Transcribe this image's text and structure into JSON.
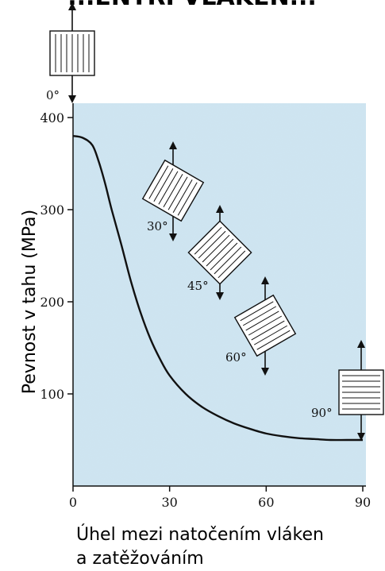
{
  "header": {
    "cut_title": "...ENTRÍ VLÁKEN..."
  },
  "chart_data": {
    "type": "line",
    "title": "",
    "xlabel": "Úhel mezi natočením vláken",
    "xlabel_line2": "a zatěžováním",
    "ylabel": "Pevnost v tahu (MPa)",
    "xlim": [
      0,
      90
    ],
    "ylim": [
      0,
      400
    ],
    "x_ticks": [
      0,
      30,
      60,
      90
    ],
    "y_ticks": [
      100,
      200,
      300,
      400
    ],
    "grid": false,
    "background_color": "#cfe6f2",
    "line_color": "#111111",
    "series": [
      {
        "x": [
          0,
          3,
          6,
          8,
          10,
          12,
          15,
          18,
          21,
          24,
          27,
          30,
          35,
          40,
          45,
          50,
          55,
          60,
          65,
          70,
          75,
          80,
          85,
          90
        ],
        "y": [
          380,
          378,
          370,
          352,
          328,
          300,
          262,
          222,
          188,
          160,
          138,
          120,
          100,
          86,
          76,
          68,
          62,
          57,
          54,
          52,
          51,
          50,
          50,
          50
        ]
      }
    ],
    "annotations": [
      {
        "label": "0°",
        "angle": 0,
        "x": 0,
        "y": 400,
        "note": "above-plot"
      },
      {
        "label": "30°",
        "angle": 30,
        "x": 30,
        "y": 320
      },
      {
        "label": "45°",
        "angle": 45,
        "x": 45,
        "y": 250
      },
      {
        "label": "60°",
        "angle": 60,
        "x": 60,
        "y": 180
      },
      {
        "label": "90°",
        "angle": 90,
        "x": 90,
        "y": 110
      }
    ]
  }
}
